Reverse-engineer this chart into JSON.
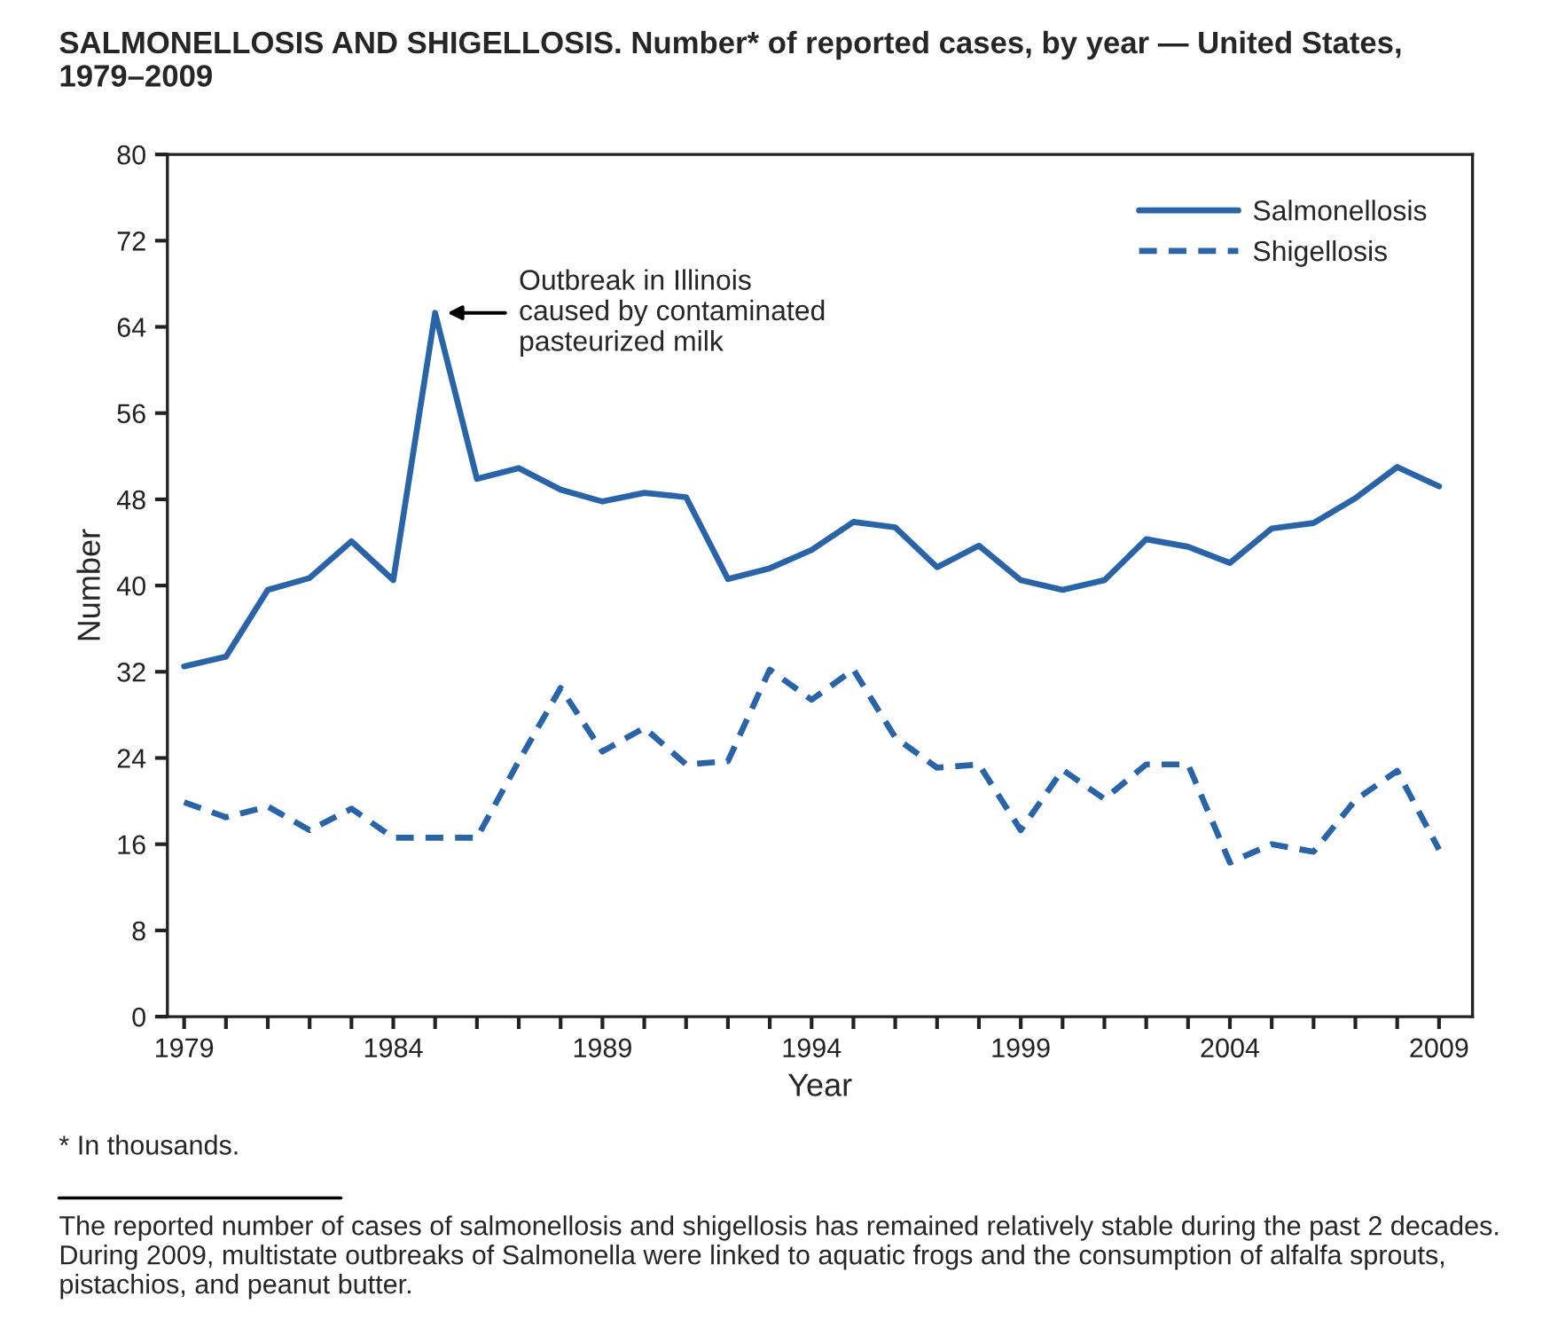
{
  "chart_data": {
    "type": "line",
    "title": "SALMONELLOSIS AND SHIGELLOSIS. Number* of reported cases, by year — United States, 1979–2009",
    "xlabel": "Year",
    "ylabel": "Number",
    "x": [
      1979,
      1980,
      1981,
      1982,
      1983,
      1984,
      1985,
      1986,
      1987,
      1988,
      1989,
      1990,
      1991,
      1992,
      1993,
      1994,
      1995,
      1996,
      1997,
      1998,
      1999,
      2000,
      2001,
      2002,
      2003,
      2004,
      2005,
      2006,
      2007,
      2008,
      2009
    ],
    "series": [
      {
        "name": "Salmonellosis",
        "color": "#2a64a8",
        "line_style": "solid",
        "values": [
          32.5,
          33.4,
          39.6,
          40.7,
          44.1,
          40.5,
          65.3,
          49.9,
          50.9,
          48.9,
          47.8,
          48.6,
          48.2,
          40.6,
          41.6,
          43.3,
          45.9,
          45.4,
          41.7,
          43.7,
          40.5,
          39.6,
          40.5,
          44.3,
          43.6,
          42.1,
          45.3,
          45.8,
          48.1,
          51.0,
          49.2
        ]
      },
      {
        "name": "Shigellosis",
        "color": "#2a64a8",
        "line_style": "dashed",
        "values": [
          19.9,
          18.5,
          19.5,
          17.3,
          19.3,
          16.6,
          16.6,
          16.6,
          23.7,
          30.5,
          24.6,
          26.8,
          23.4,
          23.7,
          32.2,
          29.4,
          32.2,
          25.9,
          23.1,
          23.4,
          17.3,
          22.9,
          20.2,
          23.4,
          23.4,
          14.3,
          16.0,
          15.3,
          20.1,
          22.8,
          15.5
        ]
      }
    ],
    "xlim": [
      1978.6,
      2009.8
    ],
    "xticks": [
      1979,
      {
        "value": 1980,
        "label": null
      },
      {
        "value": 1981,
        "label": null
      },
      {
        "value": 1982,
        "label": null
      },
      {
        "value": 1983,
        "label": null
      },
      1984,
      {
        "value": 1985,
        "label": null
      },
      {
        "value": 1986,
        "label": null
      },
      {
        "value": 1987,
        "label": null
      },
      {
        "value": 1988,
        "label": null
      },
      1989,
      {
        "value": 1990,
        "label": null
      },
      {
        "value": 1991,
        "label": null
      },
      {
        "value": 1992,
        "label": null
      },
      {
        "value": 1993,
        "label": null
      },
      1994,
      {
        "value": 1995,
        "label": null
      },
      {
        "value": 1996,
        "label": null
      },
      {
        "value": 1997,
        "label": null
      },
      {
        "value": 1998,
        "label": null
      },
      1999,
      {
        "value": 2000,
        "label": null
      },
      {
        "value": 2001,
        "label": null
      },
      {
        "value": 2002,
        "label": null
      },
      {
        "value": 2003,
        "label": null
      },
      2004,
      {
        "value": 2005,
        "label": null
      },
      {
        "value": 2006,
        "label": null
      },
      {
        "value": 2007,
        "label": null
      },
      {
        "value": 2008,
        "label": null
      },
      2009
    ],
    "ylim": [
      0,
      80
    ],
    "yticks": [
      0,
      8,
      16,
      24,
      32,
      40,
      48,
      56,
      64,
      72,
      80
    ],
    "grid": false,
    "legend": "top right",
    "marker": "none",
    "annotations": [
      {
        "text": "Outbreak in Illinois\ncaused by contaminated\npasteurized milk",
        "x": 1985,
        "y": 65.3
      },
      "* In thousands.",
      "The reported number of cases of salmonellosis and shigellosis has remained relatively stable during the past 2 decades.  During 2009, multistate outbreaks of Salmonella were linked to aquatic frogs and the consumption of alfalfa sprouts, pistachios, and peanut butter."
    ]
  }
}
